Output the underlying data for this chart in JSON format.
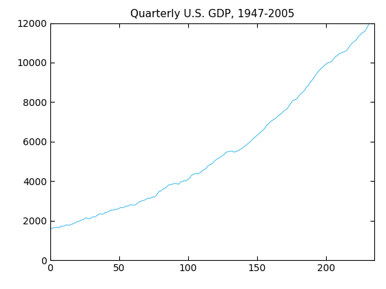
{
  "title": "Quarterly U.S. GDP, 1947-2005",
  "line_color": "#4DBEEE",
  "xlim": [
    0,
    235
  ],
  "ylim": [
    0,
    12000
  ],
  "xticks": [
    0,
    50,
    100,
    150,
    200
  ],
  "yticks": [
    0,
    2000,
    4000,
    6000,
    8000,
    10000,
    12000
  ],
  "background_color": "#ffffff",
  "figsize": [
    5.6,
    4.2
  ],
  "dpi": 100,
  "gdp_values": [
    1589.4,
    1578.1,
    1643.8,
    1642.1,
    1647.7,
    1668.0,
    1659.8,
    1651.4,
    1729.4,
    1699.8,
    1727.2,
    1748.4,
    1790.4,
    1768.7,
    1765.5,
    1802.4,
    1815.2,
    1863.2,
    1877.4,
    1925.8,
    1942.4,
    1966.8,
    2011.8,
    2034.0,
    2052.0,
    2099.1,
    2143.4,
    2107.6,
    2099.4,
    2099.4,
    2143.7,
    2195.1,
    2189.6,
    2203.0,
    2270.9,
    2295.6,
    2347.2,
    2330.8,
    2332.6,
    2340.4,
    2419.7,
    2421.2,
    2448.0,
    2492.8,
    2536.9,
    2536.4,
    2528.8,
    2571.6,
    2581.3,
    2575.4,
    2618.4,
    2669.0,
    2652.8,
    2660.8,
    2704.4,
    2733.6,
    2738.9,
    2756.5,
    2808.3,
    2791.0,
    2784.0,
    2782.8,
    2811.6,
    2858.4,
    2932.0,
    2961.1,
    2994.0,
    3015.5,
    3024.8,
    3061.3,
    3100.4,
    3142.6,
    3116.5,
    3143.5,
    3195.0,
    3186.1,
    3219.3,
    3283.3,
    3384.2,
    3489.4,
    3488.7,
    3549.2,
    3605.2,
    3631.4,
    3684.3,
    3745.5,
    3808.0,
    3825.1,
    3824.6,
    3863.3,
    3872.2,
    3881.4,
    3867.0,
    3839.3,
    3909.7,
    3975.5,
    3985.9,
    4026.8,
    4007.0,
    4042.5,
    4096.2,
    4157.8,
    4256.7,
    4318.6,
    4352.7,
    4371.8,
    4379.1,
    4361.3,
    4412.9,
    4430.7,
    4509.7,
    4568.3,
    4606.8,
    4642.0,
    4739.4,
    4799.1,
    4837.3,
    4866.7,
    4927.3,
    5009.3,
    5068.0,
    5122.7,
    5165.3,
    5188.2,
    5243.5,
    5297.5,
    5336.6,
    5432.2,
    5471.5,
    5488.4,
    5497.4,
    5515.2,
    5516.3,
    5468.0,
    5480.8,
    5505.8,
    5527.5,
    5574.9,
    5617.1,
    5649.7,
    5718.2,
    5771.8,
    5826.2,
    5878.1,
    5940.4,
    5999.5,
    6063.3,
    6151.5,
    6199.2,
    6263.0,
    6324.7,
    6377.2,
    6444.8,
    6513.0,
    6568.3,
    6623.8,
    6733.9,
    6825.4,
    6885.5,
    6955.4,
    7024.4,
    7069.1,
    7128.0,
    7156.0,
    7208.0,
    7290.4,
    7346.5,
    7393.5,
    7450.4,
    7532.9,
    7591.8,
    7607.5,
    7689.2,
    7799.5,
    7902.4,
    8006.0,
    8074.1,
    8119.1,
    8130.0,
    8195.7,
    8289.7,
    8378.9,
    8434.5,
    8508.3,
    8566.4,
    8665.0,
    8788.7,
    8831.2,
    8955.2,
    9034.6,
    9127.6,
    9227.0,
    9338.8,
    9422.7,
    9526.8,
    9601.3,
    9682.1,
    9744.3,
    9798.8,
    9870.3,
    9935.8,
    9981.8,
    10008.5,
    10031.5,
    10052.4,
    10155.2,
    10227.0,
    10328.7,
    10343.3,
    10428.4,
    10474.5,
    10490.9,
    10525.6,
    10544.6,
    10573.0,
    10621.5,
    10728.3,
    10831.1,
    10913.5,
    11000.8,
    11049.9,
    11094.8,
    11170.7,
    11282.2,
    11369.8,
    11413.9,
    11499.8,
    11549.1,
    11573.3,
    11694.8,
    11815.1,
    11962.3
  ]
}
